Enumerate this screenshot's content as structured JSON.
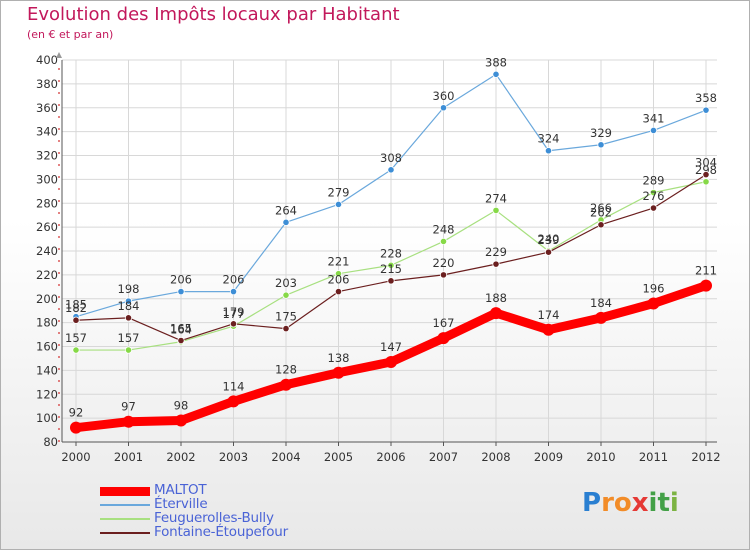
{
  "title": "Evolution des Impôts locaux par Habitant",
  "subtitle": "(en € et par an)",
  "colors": {
    "title": "#c2185b",
    "axis": "#d32f2f",
    "grid": "#d8d8d8",
    "label": "#333333"
  },
  "chart_data": {
    "type": "line",
    "x": [
      "2000",
      "2001",
      "2002",
      "2003",
      "2004",
      "2005",
      "2006",
      "2007",
      "2008",
      "2009",
      "2010",
      "2011",
      "2012"
    ],
    "ylim": [
      80,
      400
    ],
    "yticks": [
      80,
      100,
      120,
      140,
      160,
      180,
      200,
      220,
      240,
      260,
      280,
      300,
      320,
      340,
      360,
      380,
      400
    ],
    "grid": true,
    "legend_position": "bottom-left",
    "series": [
      {
        "name": "MALTOT",
        "color": "#ff0000",
        "line_color": "#ff0000",
        "width": 9,
        "values": [
          92,
          97,
          98,
          114,
          128,
          138,
          147,
          167,
          188,
          174,
          184,
          196,
          211
        ],
        "labels": [
          "92",
          "97",
          "98",
          "114",
          "128",
          "138",
          "147",
          "167",
          "188",
          "174",
          "184",
          "196",
          "211"
        ]
      },
      {
        "name": "Éterville",
        "color": "#3d8ed6",
        "line_color": "#6aa8dc",
        "width": 1.2,
        "values": [
          185,
          198,
          206,
          206,
          264,
          279,
          308,
          360,
          388,
          324,
          329,
          341,
          358
        ],
        "labels": [
          "185",
          "198",
          "206",
          "206",
          "264",
          "279",
          "308",
          "360",
          "388",
          "324",
          "329",
          "341",
          "358"
        ]
      },
      {
        "name": "Feuguerolles-Bully",
        "color": "#86d947",
        "line_color": "#a8e080",
        "width": 1.2,
        "values": [
          157,
          157,
          164,
          177,
          203,
          221,
          228,
          248,
          274,
          240,
          266,
          289,
          298
        ],
        "labels": [
          "157",
          "157",
          "164",
          "177",
          "203",
          "221",
          "228",
          "248",
          "274",
          "240",
          "266",
          "289",
          "298"
        ]
      },
      {
        "name": "Fontaine-Étoupefour",
        "color": "#6b1f1f",
        "line_color": "#6b1f1f",
        "width": 1.2,
        "values": [
          182,
          184,
          165,
          179,
          175,
          206,
          215,
          220,
          229,
          239,
          262,
          276,
          304
        ],
        "labels": [
          "182",
          "184",
          "165",
          "179",
          "175",
          "206",
          "215",
          "220",
          "229",
          "239",
          "262",
          "276",
          "304"
        ]
      }
    ]
  },
  "legend": [
    {
      "label": "MALTOT",
      "color": "#ff0000"
    },
    {
      "label": "Éterville",
      "color": "#6aa8dc"
    },
    {
      "label": "Feuguerolles-Bully",
      "color": "#a8e080"
    },
    {
      "label": "Fontaine-Étoupefour",
      "color": "#6b1f1f"
    }
  ],
  "logo": {
    "text": "Proxiti",
    "letters": [
      {
        "ch": "P",
        "color": "#2a7fd1"
      },
      {
        "ch": "r",
        "color": "#f28c28"
      },
      {
        "ch": "o",
        "color": "#f28c28"
      },
      {
        "ch": "x",
        "color": "#e53935"
      },
      {
        "ch": "i",
        "color": "#43a047"
      },
      {
        "ch": "t",
        "color": "#43a047"
      },
      {
        "ch": "i",
        "color": "#7cb342"
      }
    ]
  }
}
